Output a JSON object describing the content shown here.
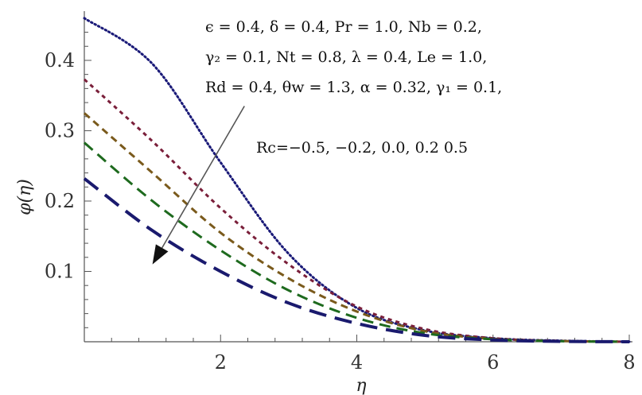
{
  "chart_data": {
    "type": "line",
    "xlabel": "η",
    "ylabel": "φ(η)",
    "xlim": [
      0,
      8
    ],
    "ylim": [
      0,
      0.47
    ],
    "x_ticks": [
      2,
      4,
      6,
      8
    ],
    "x_tick_labels": [
      "2",
      "4",
      "6",
      "8"
    ],
    "y_ticks": [
      0.1,
      0.2,
      0.3,
      0.4
    ],
    "y_tick_labels": [
      "0.1",
      "0.2",
      "0.3",
      "0.4"
    ],
    "grid": false,
    "parameters": [
      "ϵ = 0.4,  δ = 0.4,  Pr = 1.0,   Nb = 0.2,",
      "γ₂  = 0.1,  Nt = 0.8,  λ = 0.4,  Le = 1.0,",
      "Rd = 0.4,   θw = 1.3,  α  = 0.32,  γ₁  = 0.1,"
    ],
    "annotation": "Rc=−0.5, −0.2, 0.0, 0.2 0.5",
    "arrow": {
      "from": [
        2.35,
        0.335
      ],
      "to": [
        1.0,
        0.11
      ]
    },
    "series": [
      {
        "rc": -0.5,
        "color": "#1a1a78",
        "style": "dotted",
        "x": [
          0,
          1,
          2,
          3,
          4,
          5,
          6,
          7,
          8
        ],
        "y": [
          0.46,
          0.395,
          0.255,
          0.125,
          0.048,
          0.016,
          0.005,
          0.0015,
          0.0
        ]
      },
      {
        "rc": -0.2,
        "color": "#7a1f3a",
        "style": "dash-short",
        "x": [
          0,
          1,
          2,
          3,
          4,
          5,
          6,
          7,
          8
        ],
        "y": [
          0.373,
          0.285,
          0.19,
          0.11,
          0.05,
          0.018,
          0.005,
          0.0012,
          0.0
        ]
      },
      {
        "rc": 0.0,
        "color": "#7a5a1c",
        "style": "dash-medium",
        "x": [
          0,
          1,
          2,
          3,
          4,
          5,
          6,
          7,
          8
        ],
        "y": [
          0.325,
          0.24,
          0.155,
          0.09,
          0.043,
          0.015,
          0.004,
          0.001,
          0.0
        ]
      },
      {
        "rc": 0.2,
        "color": "#1e6a1e",
        "style": "dash-long",
        "x": [
          0,
          1,
          2,
          3,
          4,
          5,
          6,
          7,
          8
        ],
        "y": [
          0.283,
          0.2,
          0.13,
          0.073,
          0.034,
          0.012,
          0.0035,
          0.0008,
          0.0
        ]
      },
      {
        "rc": 0.5,
        "color": "#1a1a6e",
        "style": "dash-xlong",
        "x": [
          0,
          1,
          2,
          3,
          4,
          5,
          6,
          7,
          8
        ],
        "y": [
          0.232,
          0.158,
          0.1,
          0.055,
          0.026,
          0.009,
          0.0025,
          0.0006,
          0.0
        ]
      }
    ]
  }
}
